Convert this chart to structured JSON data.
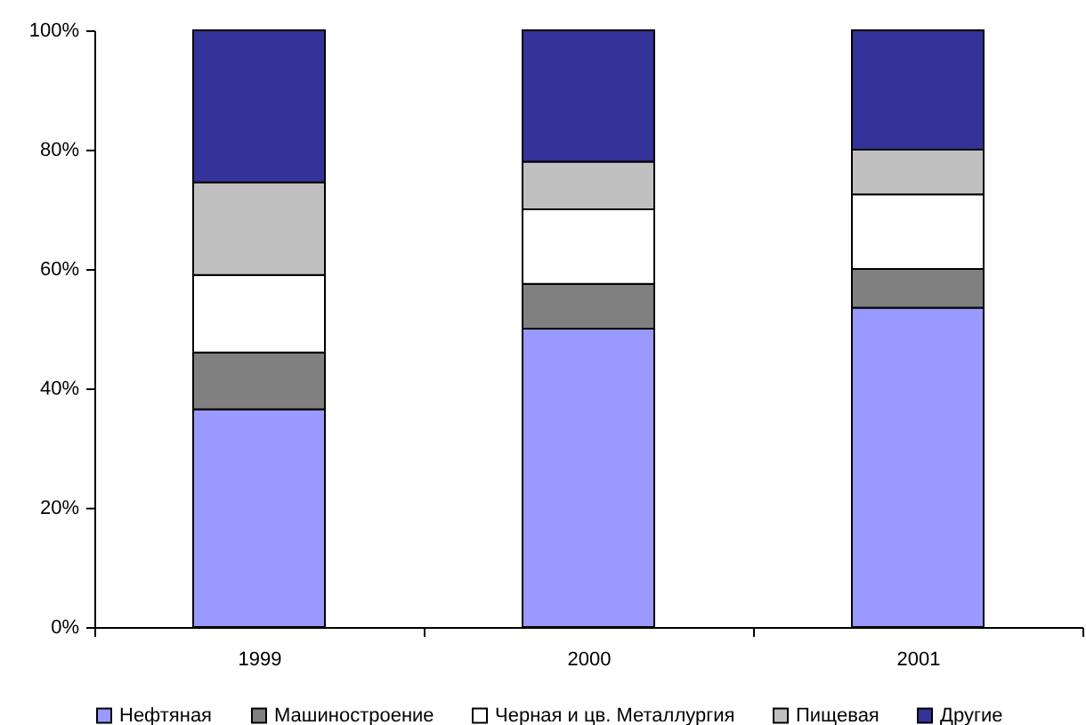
{
  "chart_data": {
    "type": "bar",
    "stacked": true,
    "categories": [
      "1999",
      "2000",
      "2001"
    ],
    "series": [
      {
        "name": "Нефтяная",
        "color": "#9999ff",
        "values": [
          36.5,
          50,
          53.5
        ]
      },
      {
        "name": "Машиностроение",
        "color": "#808080",
        "values": [
          9.5,
          7.5,
          6.5
        ]
      },
      {
        "name": "Черная и цв. Металлургия",
        "color": "#ffffff",
        "values": [
          13,
          12.5,
          12.5
        ]
      },
      {
        "name": "Пищевая",
        "color": "#c0c0c0",
        "values": [
          15.5,
          8,
          7.5
        ]
      },
      {
        "name": "Другие",
        "color": "#333399",
        "values": [
          25.5,
          22,
          20
        ]
      }
    ],
    "ylim": [
      0,
      100
    ],
    "yticks": [
      {
        "value": 0,
        "label": "0%"
      },
      {
        "value": 20,
        "label": "20%"
      },
      {
        "value": 40,
        "label": "40%"
      },
      {
        "value": 60,
        "label": "60%"
      },
      {
        "value": 80,
        "label": "80%"
      },
      {
        "value": 100,
        "label": "100%"
      }
    ],
    "grid": false,
    "legend": "bottom"
  }
}
